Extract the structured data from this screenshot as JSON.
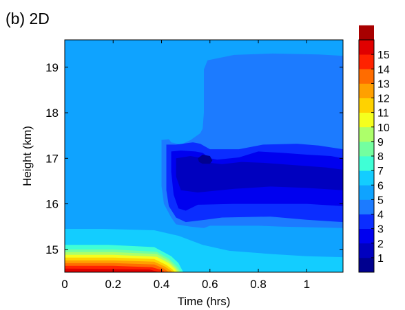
{
  "chart_data": {
    "type": "heatmap",
    "panel_label": "(b) 2D",
    "xlabel": "Time (hrs)",
    "ylabel": "Height (km)",
    "xlim": [
      0,
      1.15
    ],
    "ylim": [
      14.5,
      19.6
    ],
    "x_ticks": [
      0,
      0.2,
      0.4,
      0.6,
      0.8,
      1
    ],
    "x_tick_labels": [
      "0",
      "0.2",
      "0.4",
      "0.6",
      "0.8",
      "1"
    ],
    "y_ticks": [
      15,
      16,
      17,
      18,
      19
    ],
    "y_tick_labels": [
      "15",
      "16",
      "17",
      "18",
      "19"
    ],
    "grid": false,
    "legend": "colorbar-right",
    "colorbar": {
      "levels": [
        0,
        1,
        2,
        3,
        4,
        5,
        6,
        7,
        8,
        9,
        10,
        11,
        12,
        13,
        14,
        15,
        16
      ],
      "tick_labels": [
        "1",
        "2",
        "3",
        "4",
        "5",
        "6",
        "7",
        "8",
        "9",
        "10",
        "11",
        "12",
        "13",
        "14",
        "15"
      ],
      "colors": [
        "#00008f",
        "#0000bf",
        "#0000ef",
        "#0b2dff",
        "#1c7bff",
        "#0fa3ff",
        "#13cdff",
        "#3fffd6",
        "#73ffa0",
        "#adff6a",
        "#f5ff1e",
        "#ffd200",
        "#ffa000",
        "#ff6c00",
        "#ff2200",
        "#e00000",
        "#a80000"
      ]
    },
    "regions": [
      {
        "level": 5,
        "points": [
          [
            0,
            14.5
          ],
          [
            1.15,
            14.5
          ],
          [
            1.15,
            19.6
          ],
          [
            0,
            19.6
          ]
        ]
      },
      {
        "level": 6,
        "points": [
          [
            0,
            14.5
          ],
          [
            0,
            15.45
          ],
          [
            0.16,
            15.45
          ],
          [
            0.37,
            15.42
          ],
          [
            0.47,
            15.3
          ],
          [
            0.57,
            15.1
          ],
          [
            0.68,
            14.97
          ],
          [
            0.85,
            14.9
          ],
          [
            1.0,
            14.85
          ],
          [
            1.15,
            14.83
          ],
          [
            1.15,
            14.5
          ]
        ]
      },
      {
        "level": 7,
        "points": [
          [
            0,
            14.5
          ],
          [
            0,
            15.1
          ],
          [
            0.18,
            15.1
          ],
          [
            0.37,
            15.05
          ],
          [
            0.44,
            14.85
          ],
          [
            0.47,
            14.7
          ],
          [
            0.49,
            14.5
          ]
        ]
      },
      {
        "level": 8,
        "points": [
          [
            0,
            14.5
          ],
          [
            0,
            15.0
          ],
          [
            0.2,
            15.0
          ],
          [
            0.38,
            14.95
          ],
          [
            0.43,
            14.8
          ],
          [
            0.47,
            14.6
          ],
          [
            0.48,
            14.5
          ]
        ]
      },
      {
        "level": 9,
        "points": [
          [
            0,
            14.5
          ],
          [
            0,
            14.94
          ],
          [
            0.2,
            14.94
          ],
          [
            0.38,
            14.9
          ],
          [
            0.43,
            14.75
          ],
          [
            0.46,
            14.6
          ],
          [
            0.475,
            14.5
          ]
        ]
      },
      {
        "level": 10,
        "points": [
          [
            0,
            14.5
          ],
          [
            0,
            14.88
          ],
          [
            0.2,
            14.88
          ],
          [
            0.38,
            14.84
          ],
          [
            0.43,
            14.7
          ],
          [
            0.455,
            14.58
          ],
          [
            0.465,
            14.5
          ]
        ]
      },
      {
        "level": 11,
        "points": [
          [
            0,
            14.5
          ],
          [
            0,
            14.82
          ],
          [
            0.2,
            14.82
          ],
          [
            0.37,
            14.79
          ],
          [
            0.42,
            14.66
          ],
          [
            0.445,
            14.56
          ],
          [
            0.455,
            14.5
          ]
        ]
      },
      {
        "level": 12,
        "points": [
          [
            0,
            14.5
          ],
          [
            0,
            14.76
          ],
          [
            0.2,
            14.76
          ],
          [
            0.37,
            14.73
          ],
          [
            0.415,
            14.62
          ],
          [
            0.44,
            14.53
          ],
          [
            0.445,
            14.5
          ]
        ]
      },
      {
        "level": 13,
        "points": [
          [
            0,
            14.5
          ],
          [
            0,
            14.7
          ],
          [
            0.2,
            14.7
          ],
          [
            0.37,
            14.67
          ],
          [
            0.41,
            14.58
          ],
          [
            0.43,
            14.5
          ]
        ]
      },
      {
        "level": 14,
        "points": [
          [
            0,
            14.5
          ],
          [
            0,
            14.64
          ],
          [
            0.2,
            14.64
          ],
          [
            0.36,
            14.61
          ],
          [
            0.4,
            14.55
          ],
          [
            0.415,
            14.5
          ]
        ]
      },
      {
        "level": 15,
        "points": [
          [
            0,
            14.5
          ],
          [
            0,
            14.58
          ],
          [
            0.35,
            14.56
          ],
          [
            0.39,
            14.5
          ]
        ]
      },
      {
        "level": 4,
        "points": [
          [
            0.4,
            17.4
          ],
          [
            0.43,
            17.42
          ],
          [
            0.44,
            17.35
          ],
          [
            0.48,
            17.3
          ],
          [
            0.52,
            17.4
          ],
          [
            0.56,
            17.55
          ],
          [
            0.57,
            17.65
          ],
          [
            0.575,
            18.0
          ],
          [
            0.575,
            18.95
          ],
          [
            0.59,
            19.15
          ],
          [
            0.7,
            19.27
          ],
          [
            0.86,
            19.3
          ],
          [
            1.05,
            19.28
          ],
          [
            1.15,
            19.25
          ],
          [
            1.15,
            15.47
          ],
          [
            0.9,
            15.5
          ],
          [
            0.8,
            15.52
          ],
          [
            0.6,
            15.52
          ],
          [
            0.575,
            15.47
          ],
          [
            0.52,
            15.5
          ],
          [
            0.46,
            15.55
          ],
          [
            0.44,
            15.7
          ],
          [
            0.41,
            16.0
          ],
          [
            0.4,
            16.4
          ],
          [
            0.4,
            17.0
          ]
        ]
      },
      {
        "level": 3,
        "points": [
          [
            0.42,
            17.3
          ],
          [
            0.46,
            17.3
          ],
          [
            0.53,
            17.35
          ],
          [
            0.56,
            17.32
          ],
          [
            0.6,
            17.2
          ],
          [
            0.65,
            17.2
          ],
          [
            0.72,
            17.2
          ],
          [
            0.82,
            17.3
          ],
          [
            0.96,
            17.32
          ],
          [
            1.05,
            17.28
          ],
          [
            1.15,
            17.2
          ],
          [
            1.15,
            15.6
          ],
          [
            1.0,
            15.65
          ],
          [
            0.85,
            15.72
          ],
          [
            0.65,
            15.7
          ],
          [
            0.58,
            15.65
          ],
          [
            0.5,
            15.6
          ],
          [
            0.46,
            15.7
          ],
          [
            0.43,
            15.95
          ],
          [
            0.42,
            16.3
          ],
          [
            0.42,
            16.9
          ]
        ]
      },
      {
        "level": 2,
        "points": [
          [
            0.44,
            17.15
          ],
          [
            0.48,
            17.17
          ],
          [
            0.54,
            17.15
          ],
          [
            0.57,
            17.12
          ],
          [
            0.6,
            17.0
          ],
          [
            0.63,
            16.97
          ],
          [
            0.72,
            17.02
          ],
          [
            0.8,
            17.15
          ],
          [
            0.9,
            17.12
          ],
          [
            1.0,
            17.08
          ],
          [
            1.1,
            17.05
          ],
          [
            1.15,
            17.0
          ],
          [
            1.15,
            15.95
          ],
          [
            1.0,
            16.0
          ],
          [
            0.85,
            16.0
          ],
          [
            0.7,
            16.0
          ],
          [
            0.55,
            15.98
          ],
          [
            0.5,
            15.85
          ],
          [
            0.47,
            15.9
          ],
          [
            0.45,
            16.2
          ],
          [
            0.44,
            16.7
          ]
        ]
      },
      {
        "level": 1,
        "points": [
          [
            0.46,
            17.0
          ],
          [
            0.52,
            17.05
          ],
          [
            0.57,
            17.0
          ],
          [
            0.6,
            16.9
          ],
          [
            0.65,
            16.87
          ],
          [
            0.73,
            16.92
          ],
          [
            0.82,
            16.9
          ],
          [
            0.95,
            16.85
          ],
          [
            1.08,
            16.8
          ],
          [
            1.15,
            16.75
          ],
          [
            1.15,
            16.3
          ],
          [
            1.0,
            16.35
          ],
          [
            0.85,
            16.38
          ],
          [
            0.7,
            16.33
          ],
          [
            0.55,
            16.25
          ],
          [
            0.48,
            16.3
          ],
          [
            0.46,
            16.6
          ]
        ]
      },
      {
        "level": 0,
        "points": [
          [
            0.55,
            17.0
          ],
          [
            0.57,
            17.08
          ],
          [
            0.6,
            17.05
          ],
          [
            0.61,
            16.95
          ],
          [
            0.6,
            16.88
          ],
          [
            0.57,
            16.88
          ],
          [
            0.555,
            16.92
          ]
        ]
      }
    ]
  }
}
